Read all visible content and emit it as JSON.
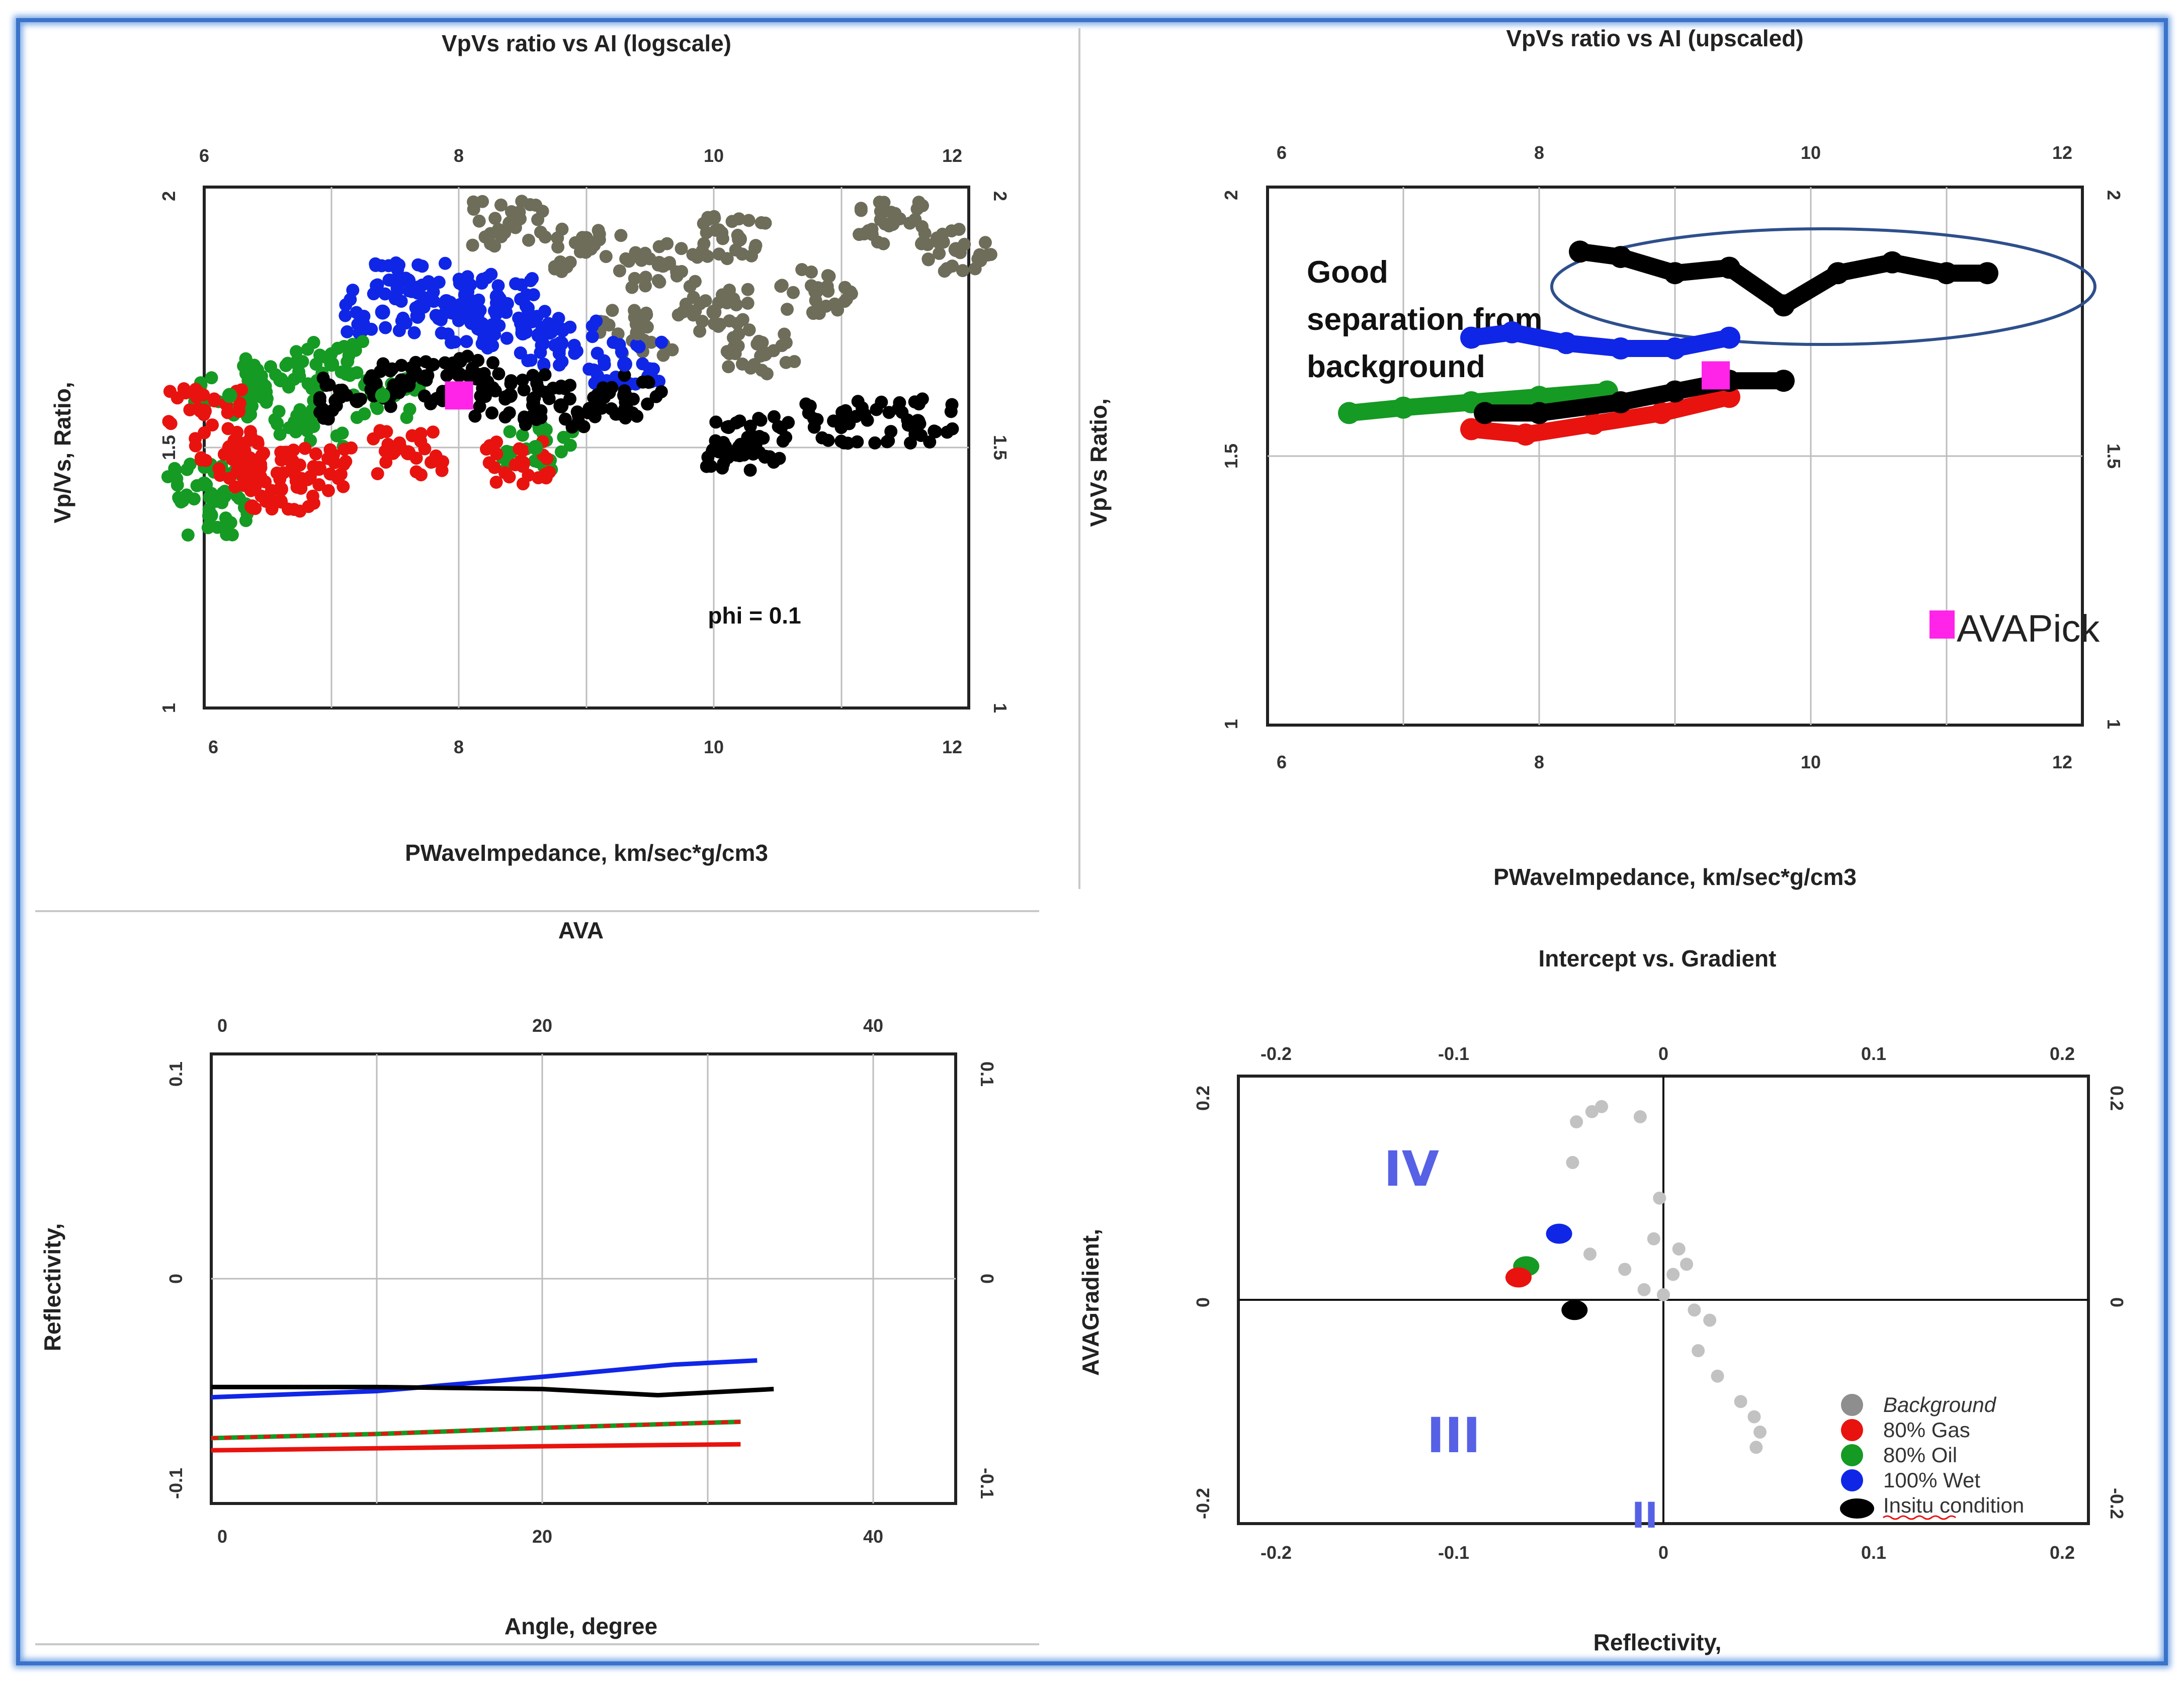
{
  "colors": {
    "gas": "#e8130f",
    "oil": "#159a23",
    "wet": "#1026e6",
    "insitu": "#000000",
    "background": "#6e6d5a",
    "background_light": "#c2c2c2",
    "pick": "#ff24e8",
    "ellipse": "#2e4f8c",
    "quadrant_label": "#5661e6",
    "border": "#3a73c9"
  },
  "chart_data": [
    {
      "id": "tl",
      "type": "scatter",
      "title": "VpVs ratio vs AI (logscale)",
      "xlabel": "PWaveImpedance, km/sec*g/cm3",
      "ylabel": "Vp/Vs, Ratio,",
      "xlim": [
        6,
        12
      ],
      "ylim": [
        1,
        2
      ],
      "xticks": [
        "6",
        "8",
        "10",
        "12"
      ],
      "yticks": [
        "1",
        "1.5",
        "2"
      ],
      "grid": true,
      "annotation": "phi = 0.1",
      "pick_point": [
        8.0,
        1.6
      ],
      "series": [
        {
          "name": "Background",
          "color": "background",
          "points": [
            [
              9.0,
              1.88
            ],
            [
              9.6,
              1.85
            ],
            [
              10.2,
              1.9
            ],
            [
              10.8,
              1.8
            ],
            [
              11.4,
              1.93
            ],
            [
              11.9,
              1.88
            ],
            [
              9.4,
              1.72
            ],
            [
              10.4,
              1.68
            ],
            [
              8.4,
              1.93
            ],
            [
              10.0,
              1.76
            ]
          ]
        },
        {
          "name": "100% Wet",
          "color": "wet",
          "points": [
            [
              7.6,
              1.82
            ],
            [
              7.9,
              1.78
            ],
            [
              8.1,
              1.74
            ],
            [
              8.5,
              1.72
            ],
            [
              8.8,
              1.7
            ],
            [
              9.3,
              1.66
            ],
            [
              7.4,
              1.76
            ],
            [
              8.3,
              1.79
            ]
          ]
        },
        {
          "name": "80% Oil",
          "color": "oil",
          "points": [
            [
              6.0,
              1.43
            ],
            [
              6.05,
              1.37
            ],
            [
              6.2,
              1.6
            ],
            [
              6.6,
              1.63
            ],
            [
              7.0,
              1.66
            ],
            [
              7.4,
              1.6
            ],
            [
              6.8,
              1.54
            ],
            [
              8.6,
              1.5
            ]
          ]
        },
        {
          "name": "80% Gas",
          "color": "gas",
          "points": [
            [
              6.0,
              1.57
            ],
            [
              6.2,
              1.5
            ],
            [
              6.4,
              1.45
            ],
            [
              6.6,
              1.42
            ],
            [
              6.9,
              1.46
            ],
            [
              7.6,
              1.49
            ],
            [
              8.5,
              1.47
            ]
          ]
        },
        {
          "name": "Insitu condition",
          "color": "insitu",
          "points": [
            [
              7.2,
              1.59
            ],
            [
              7.6,
              1.62
            ],
            [
              8.0,
              1.64
            ],
            [
              8.4,
              1.6
            ],
            [
              8.8,
              1.58
            ],
            [
              9.3,
              1.6
            ],
            [
              10.2,
              1.5
            ],
            [
              11.0,
              1.55
            ],
            [
              11.6,
              1.55
            ],
            [
              10.3,
              1.52
            ]
          ]
        }
      ]
    },
    {
      "id": "tr",
      "type": "line",
      "title": "VpVs ratio vs AI (upscaled)",
      "xlabel": "PWaveImpedance, km/sec*g/cm3",
      "ylabel": "VpVs Ratio,",
      "xlim": [
        6,
        12
      ],
      "ylim": [
        1,
        2
      ],
      "xticks": [
        "6",
        "8",
        "10",
        "12"
      ],
      "yticks": [
        "1",
        "1.5",
        "2"
      ],
      "grid": true,
      "annotation": "Good separation from background",
      "legend_label": "AVAPick",
      "pick_point": [
        9.3,
        1.65
      ],
      "series": [
        {
          "name": "Background",
          "color": "insitu",
          "points": [
            [
              8.3,
              1.88
            ],
            [
              8.6,
              1.87
            ],
            [
              9.0,
              1.84
            ],
            [
              9.4,
              1.85
            ],
            [
              9.8,
              1.78
            ],
            [
              10.2,
              1.84
            ],
            [
              10.6,
              1.86
            ],
            [
              11.0,
              1.84
            ],
            [
              11.3,
              1.84
            ]
          ]
        },
        {
          "name": "100% Wet",
          "color": "wet",
          "points": [
            [
              7.5,
              1.72
            ],
            [
              7.8,
              1.73
            ],
            [
              8.2,
              1.71
            ],
            [
              8.6,
              1.7
            ],
            [
              9.0,
              1.7
            ],
            [
              9.4,
              1.72
            ]
          ]
        },
        {
          "name": "80% Oil",
          "color": "oil",
          "points": [
            [
              6.6,
              1.58
            ],
            [
              7.0,
              1.59
            ],
            [
              7.5,
              1.6
            ],
            [
              8.0,
              1.61
            ],
            [
              8.5,
              1.62
            ]
          ]
        },
        {
          "name": "80% Gas",
          "color": "gas",
          "points": [
            [
              7.5,
              1.55
            ],
            [
              7.9,
              1.54
            ],
            [
              8.4,
              1.56
            ],
            [
              8.9,
              1.58
            ],
            [
              9.4,
              1.61
            ]
          ]
        },
        {
          "name": "Insitu condition",
          "color": "insitu",
          "points": [
            [
              7.6,
              1.58
            ],
            [
              8.0,
              1.58
            ],
            [
              8.6,
              1.6
            ],
            [
              9.0,
              1.62
            ],
            [
              9.4,
              1.64
            ],
            [
              9.8,
              1.64
            ]
          ]
        }
      ]
    },
    {
      "id": "bl",
      "type": "line",
      "title": "AVA",
      "xlabel": "Angle, degree",
      "ylabel": "Reflectivity,",
      "xlim": [
        0,
        45
      ],
      "ylim": [
        -0.11,
        0.11
      ],
      "xticks": [
        "0",
        "20",
        "40"
      ],
      "yticks": [
        "-0.1",
        "0",
        "0.1"
      ],
      "grid": true,
      "series": [
        {
          "name": "100% Wet",
          "color": "wet",
          "x": [
            0,
            10,
            20,
            28,
            33
          ],
          "values": [
            -0.058,
            -0.055,
            -0.048,
            -0.042,
            -0.04
          ]
        },
        {
          "name": "Insitu condition",
          "color": "insitu",
          "x": [
            0,
            10,
            20,
            27,
            34
          ],
          "values": [
            -0.053,
            -0.053,
            -0.054,
            -0.057,
            -0.054
          ]
        },
        {
          "name": "80% Oil",
          "color": "oil",
          "x": [
            0,
            10,
            20,
            32
          ],
          "values": [
            -0.078,
            -0.076,
            -0.073,
            -0.07
          ]
        },
        {
          "name": "80% Gas",
          "color": "gas",
          "x": [
            0,
            10,
            20,
            32
          ],
          "values": [
            -0.078,
            -0.076,
            -0.073,
            -0.07
          ]
        },
        {
          "name": "80% Gas",
          "color": "gas",
          "x": [
            0,
            10,
            20,
            32
          ],
          "values": [
            -0.084,
            -0.083,
            -0.082,
            -0.081
          ]
        }
      ]
    },
    {
      "id": "br",
      "type": "scatter",
      "title": "Intercept vs. Gradient",
      "xlabel": "Reflectivity,",
      "ylabel": "AVAGradient,",
      "xlim": [
        -0.22,
        0.22
      ],
      "ylim": [
        -0.22,
        0.22
      ],
      "xticks": [
        "-0.2",
        "-0.1",
        "0",
        "0.1",
        "0.2"
      ],
      "yticks": [
        "-0.2",
        "0",
        "0.2"
      ],
      "grid": false,
      "quadrants": [
        "IV",
        "III",
        "II"
      ],
      "legend": [
        {
          "label": "Background",
          "color": "background_light"
        },
        {
          "label": "80% Gas",
          "color": "gas"
        },
        {
          "label": "80% Oil",
          "color": "oil"
        },
        {
          "label": "100% Wet",
          "color": "wet"
        },
        {
          "label": "Insitu condition",
          "color": "insitu"
        }
      ],
      "series": [
        {
          "name": "Background",
          "color": "background_light",
          "points": [
            [
              -0.045,
              0.175
            ],
            [
              -0.037,
              0.185
            ],
            [
              -0.032,
              0.19
            ],
            [
              -0.012,
              0.18
            ],
            [
              -0.047,
              0.135
            ],
            [
              -0.002,
              0.1
            ],
            [
              -0.005,
              0.06
            ],
            [
              0.008,
              0.05
            ],
            [
              -0.038,
              0.045
            ],
            [
              -0.02,
              0.03
            ],
            [
              0.005,
              0.025
            ],
            [
              0.012,
              0.035
            ],
            [
              -0.01,
              0.01
            ],
            [
              0.0,
              0.005
            ],
            [
              0.016,
              -0.01
            ],
            [
              0.024,
              -0.02
            ],
            [
              0.018,
              -0.05
            ],
            [
              0.028,
              -0.075
            ],
            [
              0.04,
              -0.1
            ],
            [
              0.047,
              -0.115
            ],
            [
              0.05,
              -0.13
            ],
            [
              0.048,
              -0.145
            ]
          ]
        },
        {
          "name": "100% Wet",
          "color": "wet",
          "points": [
            [
              -0.054,
              0.065
            ]
          ]
        },
        {
          "name": "80% Oil",
          "color": "oil",
          "points": [
            [
              -0.071,
              0.033
            ]
          ]
        },
        {
          "name": "80% Gas",
          "color": "gas",
          "points": [
            [
              -0.075,
              0.022
            ]
          ]
        },
        {
          "name": "Insitu condition",
          "color": "insitu",
          "points": [
            [
              -0.046,
              -0.01
            ]
          ]
        }
      ]
    }
  ]
}
